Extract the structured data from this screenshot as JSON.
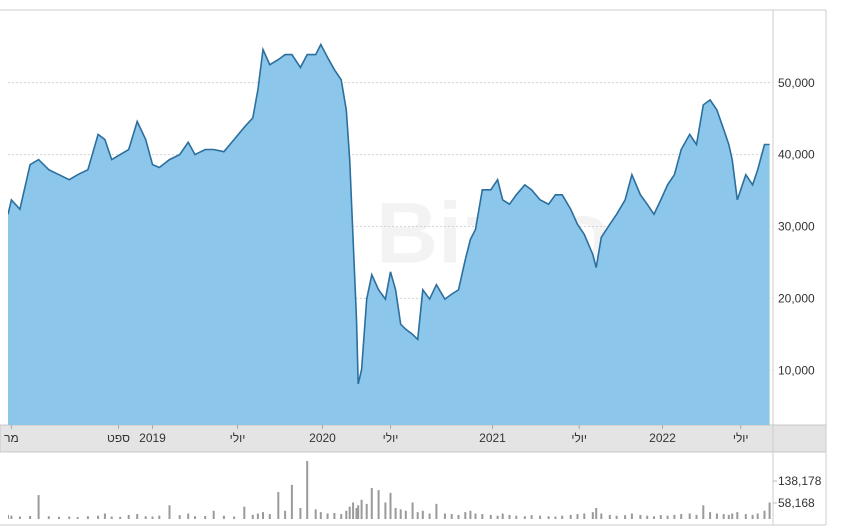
{
  "chart_data": [
    {
      "type": "area",
      "watermark": "Bizportal",
      "x": [
        2018.15,
        2018.17,
        2018.22,
        2018.28,
        2018.33,
        2018.39,
        2018.45,
        2018.51,
        2018.56,
        2018.62,
        2018.68,
        2018.72,
        2018.76,
        2018.81,
        2018.86,
        2018.91,
        2018.96,
        2019,
        2019.04,
        2019.1,
        2019.16,
        2019.21,
        2019.25,
        2019.31,
        2019.36,
        2019.42,
        2019.48,
        2019.54,
        2019.59,
        2019.62,
        2019.65,
        2019.69,
        2019.74,
        2019.78,
        2019.82,
        2019.87,
        2019.91,
        2019.96,
        2019.99,
        2020.03,
        2020.07,
        2020.11,
        2020.14,
        2020.16,
        2020.18,
        2020.2,
        2020.21,
        2020.23,
        2020.26,
        2020.29,
        2020.33,
        2020.37,
        2020.4,
        2020.43,
        2020.46,
        2020.49,
        2020.53,
        2020.56,
        2020.59,
        2020.63,
        2020.67,
        2020.72,
        2020.76,
        2020.8,
        2020.84,
        2020.87,
        2020.9,
        2020.94,
        2020.99,
        2021.03,
        2021.06,
        2021.1,
        2021.14,
        2021.19,
        2021.23,
        2021.28,
        2021.33,
        2021.37,
        2021.41,
        2021.46,
        2021.5,
        2021.54,
        2021.59,
        2021.61,
        2021.64,
        2021.69,
        2021.73,
        2021.78,
        2021.82,
        2021.87,
        2021.91,
        2021.95,
        2021.99,
        2022.03,
        2022.07,
        2022.11,
        2022.16,
        2022.2,
        2022.24,
        2022.28,
        2022.32,
        2022.36,
        2022.39,
        2022.41,
        2022.44,
        2022.49,
        2022.53,
        2022.56,
        2022.6,
        2022.63
      ],
      "values": [
        31700,
        33700,
        32400,
        38600,
        39300,
        37900,
        37200,
        36500,
        37200,
        37900,
        42800,
        42100,
        39300,
        40000,
        40700,
        44600,
        42100,
        38600,
        38200,
        39300,
        40000,
        41700,
        40000,
        40700,
        40700,
        40400,
        42100,
        43800,
        45100,
        49000,
        54600,
        52500,
        53200,
        53900,
        53900,
        52100,
        53900,
        53900,
        55300,
        53500,
        51800,
        50400,
        46200,
        39300,
        28200,
        17100,
        8100,
        10100,
        19900,
        23300,
        21200,
        19900,
        23700,
        21200,
        16400,
        15700,
        15000,
        14300,
        21200,
        19900,
        21900,
        19900,
        20600,
        21200,
        25400,
        28200,
        29600,
        35100,
        35100,
        36500,
        33700,
        33100,
        34400,
        35800,
        35100,
        33700,
        33100,
        34400,
        34400,
        32400,
        30300,
        28900,
        26100,
        24300,
        28500,
        30300,
        31700,
        33700,
        37200,
        34400,
        33100,
        31700,
        33700,
        35800,
        37200,
        40700,
        42800,
        41400,
        46900,
        47600,
        46200,
        43500,
        41400,
        39300,
        33700,
        37200,
        35800,
        37900,
        41400,
        41400
      ],
      "color": "#8cc6ea",
      "line_color": "#2b6f9e",
      "xlim": [
        2018.15,
        2022.65
      ],
      "xticks": [
        {
          "value": 2018.17,
          "label": "מר"
        },
        {
          "value": 2018.8,
          "label": "ספט"
        },
        2019,
        {
          "value": 2019.5,
          "label": "יולי"
        },
        2020,
        {
          "value": 2020.4,
          "label": "יולי"
        },
        2021,
        {
          "value": 2021.51,
          "label": "יולי"
        },
        2022,
        {
          "value": 2022.46,
          "label": "יולי"
        }
      ],
      "ylim": [
        2400,
        60100
      ],
      "yticks": [
        {
          "value": 10000,
          "label": "10,000"
        },
        {
          "value": 20000,
          "label": "20,000"
        },
        {
          "value": 30000,
          "label": "30,000"
        },
        {
          "value": 40000,
          "label": "40,000"
        },
        {
          "value": 50000,
          "label": "50,000"
        }
      ],
      "grid": true
    },
    {
      "type": "bar",
      "x": [
        2018.15,
        2018.17,
        2018.22,
        2018.28,
        2018.33,
        2018.39,
        2018.45,
        2018.51,
        2018.56,
        2018.62,
        2018.68,
        2018.72,
        2018.76,
        2018.81,
        2018.86,
        2018.91,
        2018.96,
        2019,
        2019.04,
        2019.1,
        2019.16,
        2019.21,
        2019.25,
        2019.31,
        2019.36,
        2019.42,
        2019.48,
        2019.54,
        2019.59,
        2019.62,
        2019.65,
        2019.69,
        2019.74,
        2019.78,
        2019.82,
        2019.87,
        2019.91,
        2019.96,
        2019.99,
        2020.03,
        2020.07,
        2020.11,
        2020.14,
        2020.16,
        2020.18,
        2020.2,
        2020.21,
        2020.23,
        2020.26,
        2020.29,
        2020.33,
        2020.37,
        2020.4,
        2020.43,
        2020.46,
        2020.49,
        2020.53,
        2020.56,
        2020.59,
        2020.63,
        2020.67,
        2020.72,
        2020.76,
        2020.8,
        2020.84,
        2020.87,
        2020.9,
        2020.94,
        2020.99,
        2021.03,
        2021.06,
        2021.1,
        2021.14,
        2021.19,
        2021.23,
        2021.28,
        2021.33,
        2021.37,
        2021.41,
        2021.46,
        2021.5,
        2021.54,
        2021.59,
        2021.61,
        2021.64,
        2021.69,
        2021.73,
        2021.78,
        2021.82,
        2021.87,
        2021.91,
        2021.95,
        2021.99,
        2022.03,
        2022.07,
        2022.11,
        2022.16,
        2022.2,
        2022.24,
        2022.28,
        2022.32,
        2022.36,
        2022.39,
        2022.41,
        2022.44,
        2022.49,
        2022.53,
        2022.56,
        2022.6,
        2022.63
      ],
      "values": [
        15000,
        12000,
        9000,
        11000,
        87000,
        10000,
        8000,
        9000,
        7000,
        10000,
        12000,
        20000,
        9000,
        8000,
        15000,
        18000,
        10000,
        9000,
        12000,
        50000,
        14000,
        20000,
        10000,
        11000,
        30000,
        12000,
        9000,
        45000,
        15000,
        20000,
        25000,
        18000,
        98000,
        30000,
        124000,
        40000,
        211000,
        35000,
        25000,
        20000,
        22000,
        18000,
        30000,
        45000,
        60000,
        40000,
        50000,
        70000,
        55000,
        113000,
        105000,
        60000,
        95000,
        40000,
        35000,
        30000,
        60000,
        25000,
        30000,
        20000,
        55000,
        20000,
        18000,
        15000,
        25000,
        30000,
        20000,
        18000,
        15000,
        12000,
        20000,
        15000,
        12000,
        10000,
        14000,
        12000,
        10000,
        9000,
        12000,
        15000,
        18000,
        20000,
        25000,
        40000,
        20000,
        15000,
        12000,
        14000,
        20000,
        15000,
        12000,
        10000,
        14000,
        12000,
        15000,
        18000,
        20000,
        15000,
        50000,
        25000,
        20000,
        18000,
        15000,
        20000,
        25000,
        18000,
        15000,
        20000,
        30000,
        60000
      ],
      "color": "#9a9a9a",
      "xlim": [
        2018.15,
        2022.65
      ],
      "ylim": [
        0,
        232800
      ],
      "yticks": [
        {
          "value": 58168,
          "label": "58,168"
        },
        {
          "value": 138178,
          "label": "138,178"
        }
      ],
      "grid": false
    }
  ]
}
